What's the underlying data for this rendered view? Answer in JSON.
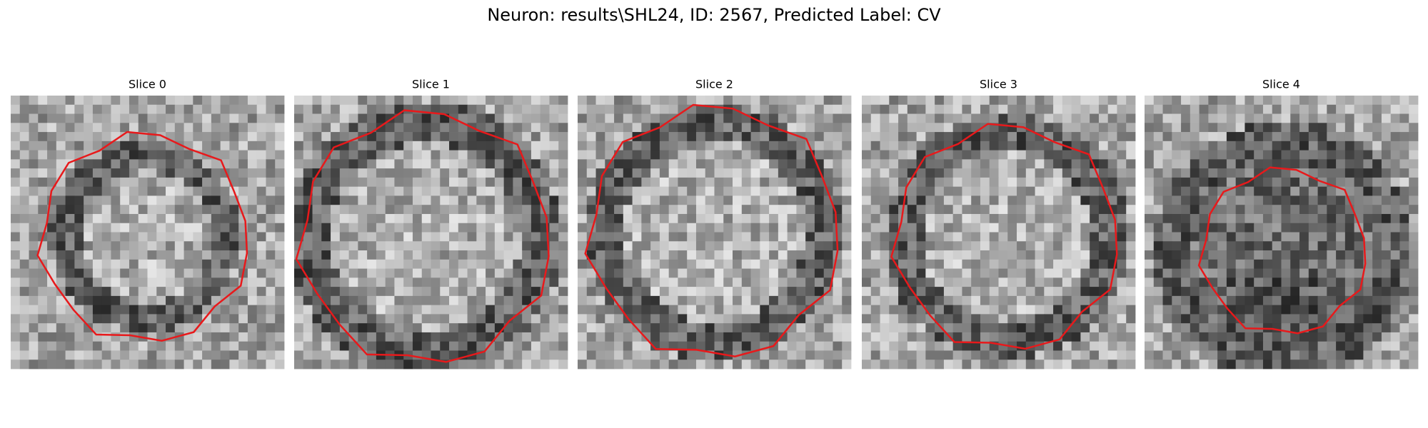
{
  "title": "Neuron: results\\SHL24, ID: 2567, Predicted Label: CV",
  "panels": [
    {
      "title": "Slice 0"
    },
    {
      "title": "Slice 1"
    },
    {
      "title": "Slice 2"
    },
    {
      "title": "Slice 3"
    },
    {
      "title": "Slice 4"
    }
  ]
}
